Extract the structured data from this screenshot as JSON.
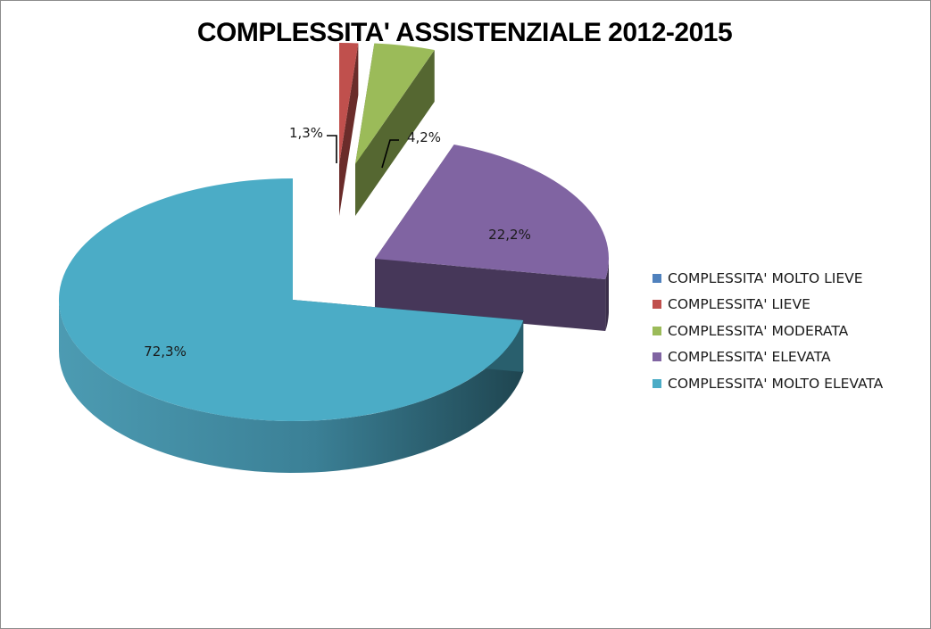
{
  "chart_data": {
    "type": "pie",
    "title": "COMPLESSITA' ASSISTENZIALE 2012-2015",
    "legend_position": "right",
    "three_d": true,
    "exploded": true,
    "slices": [
      {
        "label": "COMPLESSITA' MOLTO LIEVE",
        "value": 0.0,
        "display": "",
        "color": "#4F81BD"
      },
      {
        "label": "COMPLESSITA' LIEVE",
        "value": 1.3,
        "display": "1,3%",
        "color": "#C0504D"
      },
      {
        "label": "COMPLESSITA' MODERATA",
        "value": 4.2,
        "display": "4,2%",
        "color": "#9BBB59"
      },
      {
        "label": "COMPLESSITA' ELEVATA",
        "value": 22.2,
        "display": "22,2%",
        "color": "#8064A2"
      },
      {
        "label": "COMPLESSITA' MOLTO ELEVATA",
        "value": 72.3,
        "display": "72,3%",
        "color": "#4BACC6"
      }
    ]
  }
}
